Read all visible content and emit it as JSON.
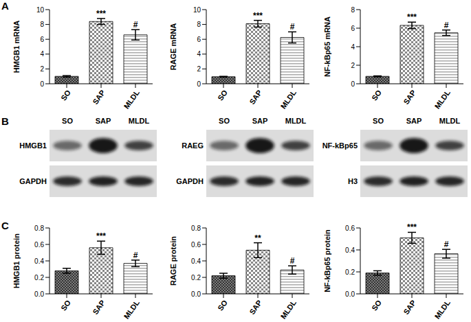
{
  "panel_labels": [
    "A",
    "B",
    "C"
  ],
  "chart_data": [
    {
      "type": "bar",
      "ylabel": "HMGB1 mRNA",
      "categories": [
        "SO",
        "SAP",
        "MLDL"
      ],
      "values": [
        1.0,
        8.4,
        6.6
      ],
      "errors": [
        0.1,
        0.4,
        0.7
      ],
      "annotations": [
        null,
        "***",
        "#"
      ],
      "colors": [
        "#333333",
        "#888888",
        "#aaaaaa"
      ],
      "ylim": [
        0,
        10
      ],
      "yticks": [
        0,
        2,
        4,
        6,
        8,
        10
      ]
    },
    {
      "type": "bar",
      "ylabel": "RAGE mRNA",
      "categories": [
        "SO",
        "SAP",
        "MLDL"
      ],
      "values": [
        0.95,
        8.1,
        6.25
      ],
      "errors": [
        0.05,
        0.45,
        0.75
      ],
      "annotations": [
        null,
        "***",
        "#"
      ],
      "colors": [
        "#333333",
        "#888888",
        "#aaaaaa"
      ],
      "ylim": [
        0,
        10
      ],
      "yticks": [
        0,
        2,
        4,
        6,
        8,
        10
      ]
    },
    {
      "type": "bar",
      "ylabel": "NF-kBp65  mRNA",
      "categories": [
        "SO",
        "SAP",
        "MLDL"
      ],
      "values": [
        0.8,
        6.3,
        5.5
      ],
      "errors": [
        0.05,
        0.35,
        0.3
      ],
      "annotations": [
        null,
        "***",
        "#"
      ],
      "colors": [
        "#333333",
        "#888888",
        "#aaaaaa"
      ],
      "ylim": [
        0,
        8
      ],
      "yticks": [
        0,
        2,
        4,
        6,
        8
      ]
    },
    {
      "type": "bar",
      "ylabel": "HMGB1 protein",
      "categories": [
        "SO",
        "SAP",
        "MLDL"
      ],
      "values": [
        0.28,
        0.56,
        0.37
      ],
      "errors": [
        0.03,
        0.08,
        0.04
      ],
      "annotations": [
        null,
        "***",
        "#"
      ],
      "colors": [
        "#333333",
        "#888888",
        "#aaaaaa"
      ],
      "ylim": [
        0,
        0.8
      ],
      "yticks": [
        {
          "value": 0,
          "label": "0.0"
        },
        0.2,
        0.4,
        0.6,
        0.8
      ]
    },
    {
      "type": "bar",
      "ylabel": "RAGE protein",
      "categories": [
        "SO",
        "SAP",
        "MLDL"
      ],
      "values": [
        0.22,
        0.53,
        0.29
      ],
      "errors": [
        0.03,
        0.09,
        0.05
      ],
      "annotations": [
        null,
        "**",
        "#"
      ],
      "colors": [
        "#333333",
        "#888888",
        "#aaaaaa"
      ],
      "ylim": [
        0,
        0.8
      ],
      "yticks": [
        {
          "value": 0,
          "label": "0.0"
        },
        0.2,
        0.4,
        0.6,
        0.8
      ]
    },
    {
      "type": "bar",
      "ylabel": "NF-kBp65 protein",
      "categories": [
        "SO",
        "SAP",
        "MLDL"
      ],
      "values": [
        0.19,
        0.51,
        0.365
      ],
      "errors": [
        0.02,
        0.05,
        0.04
      ],
      "annotations": [
        null,
        "***",
        "#"
      ],
      "colors": [
        "#333333",
        "#888888",
        "#aaaaaa"
      ],
      "ylim": [
        0,
        0.6
      ],
      "yticks": [
        {
          "value": 0,
          "label": "0.0"
        },
        0.2,
        0.4,
        0.6
      ]
    }
  ],
  "blots": [
    {
      "lanes": [
        "SO",
        "SAP",
        "MLDL"
      ],
      "rows": [
        "HMGB1",
        "GAPDH"
      ]
    },
    {
      "lanes": [
        "SO",
        "SAP",
        "MLDL"
      ],
      "rows": [
        "RAEG",
        "GAPDH"
      ]
    },
    {
      "lanes": [
        "SO",
        "SAP",
        "MLDL"
      ],
      "rows": [
        "NF-kBp65",
        "H3"
      ]
    }
  ]
}
